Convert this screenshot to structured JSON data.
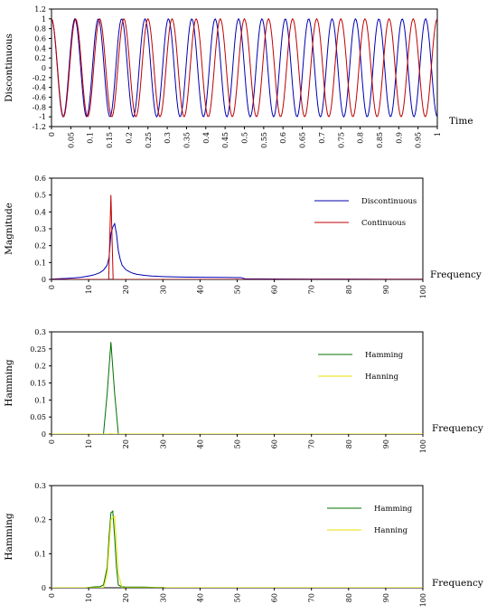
{
  "chart_data": [
    {
      "type": "line",
      "ylabel": "Discontinuous",
      "xlabel": "Time",
      "xlim": [
        0,
        1
      ],
      "ylim": [
        -1.2,
        1.2
      ],
      "xticks": [
        "0",
        "0.05",
        "0.1",
        "0.15",
        "0.2",
        "0.25",
        "0.3",
        "0.35",
        "0.4",
        "0.45",
        "0.5",
        "0.55",
        "0.6",
        "0.65",
        "0.7",
        "0.75",
        "0.8",
        "0.85",
        "0.9",
        "0.95",
        "1"
      ],
      "yticks": [
        "1.2",
        "1",
        "0.8",
        "0.6",
        "0.4",
        "0.2",
        "0",
        "-0.2",
        "-0.4",
        "-0.6",
        "-0.8",
        "-1",
        "-1.2"
      ],
      "series": [
        {
          "color": "#0000b0",
          "function": "cos(2*pi*f*t)",
          "f": 16.5,
          "samples": 400
        },
        {
          "color": "#c00000",
          "function": "cos(2*pi*f*t)",
          "f": 16,
          "samples": 400
        }
      ]
    },
    {
      "type": "line",
      "ylabel": "Magnitude",
      "xlabel": "Frequency",
      "xlim": [
        0,
        100
      ],
      "ylim": [
        0,
        0.6
      ],
      "xticks": [
        "0",
        "10",
        "20",
        "30",
        "40",
        "50",
        "60",
        "70",
        "80",
        "90",
        "100"
      ],
      "yticks": [
        "0.6",
        "0.5",
        "0.4",
        "0.3",
        "0.2",
        "0.1",
        "0"
      ],
      "legend": "right",
      "series": [
        {
          "name": "Discontinuous",
          "color": "#0000b0",
          "x": [
            0,
            2,
            4,
            6,
            8,
            10,
            11,
            12,
            13,
            14,
            15,
            15.5,
            16,
            16.5,
            17,
            17.5,
            18,
            18.5,
            19,
            20,
            21,
            22,
            23,
            25,
            27,
            30,
            35,
            40,
            45,
            50,
            51,
            52,
            60,
            70,
            80,
            90,
            100
          ],
          "y": [
            0.002,
            0.004,
            0.006,
            0.009,
            0.013,
            0.02,
            0.025,
            0.031,
            0.04,
            0.055,
            0.085,
            0.13,
            0.27,
            0.31,
            0.33,
            0.27,
            0.17,
            0.12,
            0.085,
            0.058,
            0.045,
            0.036,
            0.03,
            0.024,
            0.02,
            0.017,
            0.014,
            0.013,
            0.012,
            0.011,
            0.011,
            0.004,
            0.003,
            0.002,
            0.002,
            0.001,
            0.001
          ]
        },
        {
          "name": "Continuous",
          "color": "#c00000",
          "x": [
            0,
            15.4,
            15.7,
            16,
            16.3,
            16.6,
            100
          ],
          "y": [
            0,
            0,
            0.25,
            0.5,
            0.25,
            0,
            0
          ]
        }
      ]
    },
    {
      "type": "line",
      "ylabel": "Hamming",
      "xlabel": "Frequency",
      "xlim": [
        0,
        100
      ],
      "ylim": [
        0,
        0.3
      ],
      "xticks": [
        "0",
        "10",
        "20",
        "30",
        "40",
        "50",
        "60",
        "70",
        "80",
        "90",
        "100"
      ],
      "yticks": [
        "0.3",
        "0.25",
        "0.2",
        "0.15",
        "0.1",
        "0.05",
        "0"
      ],
      "legend": "right",
      "series": [
        {
          "name": "Hamming",
          "color": "#007000",
          "x": [
            0,
            14,
            15,
            16,
            17,
            18,
            100
          ],
          "y": [
            0,
            0,
            0.12,
            0.27,
            0.12,
            0,
            0
          ]
        },
        {
          "name": "Hanning",
          "color": "#e8e000",
          "x": [
            0,
            15.5,
            16,
            16.5,
            100
          ],
          "y": [
            0,
            0,
            0.001,
            0,
            0
          ]
        }
      ]
    },
    {
      "type": "line",
      "ylabel": "Hamming",
      "xlabel": "Frequency",
      "xlim": [
        0,
        100
      ],
      "ylim": [
        0,
        0.3
      ],
      "xticks": [
        "0",
        "10",
        "20",
        "30",
        "40",
        "50",
        "60",
        "70",
        "80",
        "90",
        "100"
      ],
      "yticks": [
        "0.3",
        "0.2",
        "0.1",
        "0"
      ],
      "legend": "right",
      "series": [
        {
          "name": "Hamming",
          "color": "#007000",
          "x": [
            0,
            9,
            10,
            11,
            12,
            13,
            14,
            15,
            15.5,
            16,
            16.5,
            17,
            17.5,
            18,
            19,
            20,
            22,
            25,
            28,
            30,
            31,
            100
          ],
          "y": [
            0,
            0,
            0.001,
            0.002,
            0.003,
            0.003,
            0.008,
            0.06,
            0.15,
            0.22,
            0.225,
            0.15,
            0.06,
            0.008,
            0.003,
            0.002,
            0.002,
            0.002,
            0.001,
            0.001,
            0,
            0
          ]
        },
        {
          "name": "Hanning",
          "color": "#e8e000",
          "x": [
            0,
            14,
            15,
            16,
            17,
            18,
            19,
            100
          ],
          "y": [
            0,
            0,
            0.04,
            0.2,
            0.21,
            0.04,
            0,
            0
          ]
        }
      ]
    }
  ]
}
